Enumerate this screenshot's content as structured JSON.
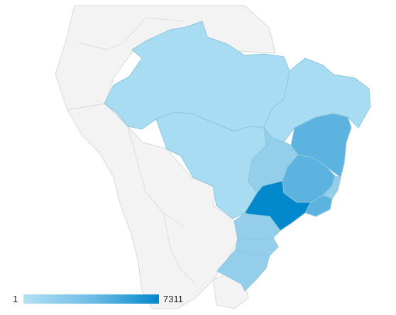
{
  "legend": {
    "min_label": "1",
    "max_label": "7311",
    "min_color": "#b3e1f6",
    "max_color": "#0288cc"
  },
  "colors": {
    "background": "#ffffff",
    "land": "#f3f3f3",
    "border": "#d9d9d9",
    "region_border": "#8fc6dd",
    "level_low": "#a8dcf2",
    "level_mid": "#93cfea",
    "level_high": "#5cb3df",
    "level_max": "#0288cc"
  },
  "regions": [
    {
      "name": "north",
      "level": "low"
    },
    {
      "name": "center-west",
      "level": "low"
    },
    {
      "name": "northeast",
      "level": "low"
    },
    {
      "name": "bahia",
      "level": "high"
    },
    {
      "name": "goias",
      "level": "mid"
    },
    {
      "name": "minas-gerais",
      "level": "high"
    },
    {
      "name": "espirito-santo",
      "level": "mid"
    },
    {
      "name": "rio-de-janeiro",
      "level": "high"
    },
    {
      "name": "sao-paulo",
      "level": "max"
    },
    {
      "name": "parana",
      "level": "mid"
    },
    {
      "name": "santa-catarina",
      "level": "mid"
    },
    {
      "name": "rio-grande-do-sul",
      "level": "mid"
    }
  ]
}
